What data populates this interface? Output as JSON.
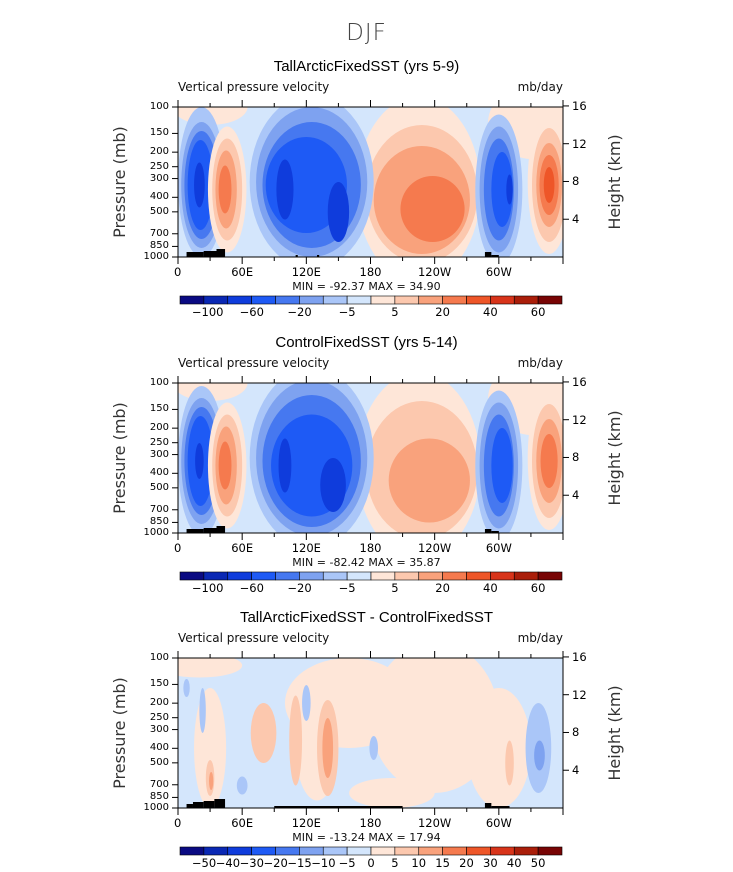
{
  "figure_title": "DJF",
  "colors": [
    "#0a0a82",
    "#0a28b4",
    "#0f3cdc",
    "#1e5af5",
    "#4678f0",
    "#7ea2f0",
    "#aac6f8",
    "#d4e6fc",
    "#fee6d8",
    "#fcc8ae",
    "#f9a27c",
    "#f57a4e",
    "#ee5628",
    "#d8341a",
    "#aa1e0a",
    "#780404"
  ],
  "axes": {
    "y_left_label": "Pressure (mb)",
    "y_right_label": "Height (km)",
    "pressure_ticks": [
      "100",
      "150",
      "200",
      "250",
      "300",
      "400",
      "500",
      "700",
      "850",
      "1000"
    ],
    "height_ticks": [
      "16",
      "12",
      "8",
      "4"
    ],
    "x_ticks": [
      "0",
      "60E",
      "120E",
      "180",
      "120W",
      "60W"
    ]
  },
  "chart_data": [
    {
      "type": "heatmap",
      "title": "TallArcticFixedSST (yrs 5-9)",
      "variable_label": "Vertical pressure velocity",
      "units": "mb/day",
      "min_max": "MIN = -92.37   MAX =  34.90",
      "min": -92.37,
      "max": 34.9,
      "levels": [
        -100,
        -80,
        -60,
        -40,
        -20,
        -10,
        -5,
        0,
        5,
        10,
        20,
        30,
        40,
        50,
        60
      ],
      "colorbar_labels": [
        "-100",
        "-60",
        "-20",
        "-5",
        "5",
        "20",
        "40",
        "60"
      ],
      "ylim": [
        1000,
        100
      ],
      "xlim": [
        0,
        360
      ],
      "y_scale": "log"
    },
    {
      "type": "heatmap",
      "title": "ControlFixedSST (yrs 5-14)",
      "variable_label": "Vertical pressure velocity",
      "units": "mb/day",
      "min_max": "MIN = -82.42   MAX =  35.87",
      "min": -82.42,
      "max": 35.87,
      "levels": [
        -100,
        -80,
        -60,
        -40,
        -20,
        -10,
        -5,
        0,
        5,
        10,
        20,
        30,
        40,
        50,
        60
      ],
      "colorbar_labels": [
        "-100",
        "-60",
        "-20",
        "-5",
        "5",
        "20",
        "40",
        "60"
      ],
      "ylim": [
        1000,
        100
      ],
      "xlim": [
        0,
        360
      ],
      "y_scale": "log"
    },
    {
      "type": "heatmap",
      "title": "TallArcticFixedSST - ControlFixedSST",
      "variable_label": "Vertical pressure velocity",
      "units": "mb/day",
      "min_max": "MIN = -13.24   MAX =  17.94",
      "min": -13.24,
      "max": 17.94,
      "levels": [
        -50,
        -40,
        -30,
        -20,
        -15,
        -10,
        -5,
        0,
        5,
        10,
        15,
        20,
        30,
        40,
        50
      ],
      "colorbar_labels": [
        "-50",
        "-40",
        "-30",
        "-20",
        "-15",
        "-10",
        "-5",
        "0",
        "5",
        "10",
        "15",
        "20",
        "30",
        "40",
        "50"
      ],
      "ylim": [
        1000,
        100
      ],
      "xlim": [
        0,
        360
      ],
      "y_scale": "log"
    }
  ]
}
